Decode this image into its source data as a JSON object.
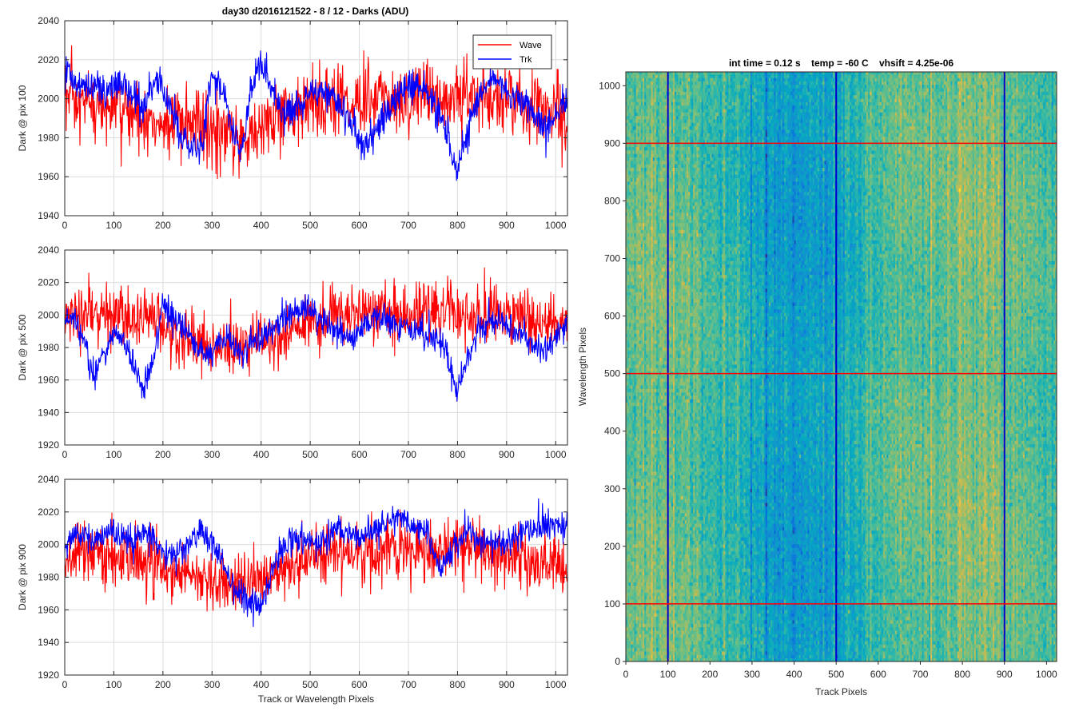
{
  "figure": {
    "title": "day30 d2016121522 - 8 / 12 - Darks (ADU)"
  },
  "chart_data": [
    {
      "type": "line",
      "ylabel": "Dark @ pix 100",
      "xlabel": "",
      "xlim": [
        0,
        1024
      ],
      "ylim": [
        1940,
        2040
      ],
      "xticks": [
        0,
        100,
        200,
        300,
        400,
        500,
        600,
        700,
        800,
        900,
        1000
      ],
      "yticks": [
        1940,
        1960,
        1980,
        2000,
        2020,
        2040
      ],
      "grid": true,
      "legend": "top-right",
      "series": [
        {
          "name": "Wave",
          "color": "#ff0000",
          "mean": 1993,
          "noise": 9.5,
          "anchors": [
            [
              0,
              2003
            ],
            [
              20,
              1996
            ],
            [
              60,
              1996
            ],
            [
              100,
              1994
            ],
            [
              150,
              1992
            ],
            [
              200,
              1986
            ],
            [
              250,
              1987
            ],
            [
              300,
              1982
            ],
            [
              350,
              1980
            ],
            [
              400,
              1984
            ],
            [
              450,
              1993
            ],
            [
              500,
              1998
            ],
            [
              550,
              2000
            ],
            [
              600,
              1998
            ],
            [
              650,
              1999
            ],
            [
              700,
              2002
            ],
            [
              750,
              2001
            ],
            [
              800,
              2000
            ],
            [
              850,
              2001
            ],
            [
              900,
              1998
            ],
            [
              950,
              1996
            ],
            [
              1000,
              1993
            ],
            [
              1023,
              1990
            ]
          ]
        },
        {
          "name": "Trk",
          "color": "#0000ff",
          "mean": 1998,
          "noise": 4.5,
          "anchors": [
            [
              0,
              2015
            ],
            [
              20,
              2010
            ],
            [
              40,
              2006
            ],
            [
              60,
              2008
            ],
            [
              80,
              2002
            ],
            [
              100,
              2006
            ],
            [
              120,
              2007
            ],
            [
              140,
              2000
            ],
            [
              160,
              1996
            ],
            [
              180,
              2012
            ],
            [
              200,
              2005
            ],
            [
              220,
              1993
            ],
            [
              240,
              1978
            ],
            [
              260,
              1972
            ],
            [
              280,
              1975
            ],
            [
              300,
              2015
            ],
            [
              320,
              2004
            ],
            [
              340,
              1986
            ],
            [
              360,
              1970
            ],
            [
              380,
              2006
            ],
            [
              400,
              2018
            ],
            [
              420,
              2006
            ],
            [
              440,
              1995
            ],
            [
              460,
              1993
            ],
            [
              480,
              1998
            ],
            [
              500,
              2002
            ],
            [
              520,
              2004
            ],
            [
              540,
              2002
            ],
            [
              560,
              1997
            ],
            [
              580,
              1990
            ],
            [
              600,
              1980
            ],
            [
              610,
              1972
            ],
            [
              620,
              1978
            ],
            [
              640,
              1985
            ],
            [
              660,
              1996
            ],
            [
              680,
              2003
            ],
            [
              700,
              2008
            ],
            [
              720,
              2005
            ],
            [
              740,
              2001
            ],
            [
              760,
              1992
            ],
            [
              780,
              1982
            ],
            [
              790,
              1970
            ],
            [
              800,
              1962
            ],
            [
              810,
              1975
            ],
            [
              830,
              1992
            ],
            [
              850,
              2005
            ],
            [
              870,
              2011
            ],
            [
              890,
              2006
            ],
            [
              910,
              2001
            ],
            [
              940,
              1998
            ],
            [
              960,
              1990
            ],
            [
              980,
              1984
            ],
            [
              1000,
              1992
            ],
            [
              1023,
              1998
            ]
          ]
        }
      ]
    },
    {
      "type": "line",
      "ylabel": "Dark @ pix 500",
      "xlabel": "",
      "xlim": [
        0,
        1024
      ],
      "ylim": [
        1920,
        2040
      ],
      "xticks": [
        0,
        100,
        200,
        300,
        400,
        500,
        600,
        700,
        800,
        900,
        1000
      ],
      "yticks": [
        1920,
        1940,
        1960,
        1980,
        2000,
        2020,
        2040
      ],
      "grid": true,
      "series": [
        {
          "name": "Wave",
          "color": "#ff0000",
          "mean": 1995,
          "noise": 9,
          "anchors": [
            [
              0,
              1998
            ],
            [
              50,
              2000
            ],
            [
              100,
              2002
            ],
            [
              150,
              1998
            ],
            [
              200,
              1994
            ],
            [
              250,
              1986
            ],
            [
              300,
              1980
            ],
            [
              350,
              1980
            ],
            [
              400,
              1984
            ],
            [
              450,
              1990
            ],
            [
              500,
              1995
            ],
            [
              550,
              1998
            ],
            [
              600,
              1999
            ],
            [
              650,
              2001
            ],
            [
              700,
              2002
            ],
            [
              750,
              2002
            ],
            [
              800,
              2000
            ],
            [
              850,
              2000
            ],
            [
              900,
              1999
            ],
            [
              950,
              1997
            ],
            [
              1000,
              1995
            ],
            [
              1023,
              1993
            ]
          ]
        },
        {
          "name": "Trk",
          "color": "#0000ff",
          "mean": 1990,
          "noise": 4.5,
          "anchors": [
            [
              0,
              2001
            ],
            [
              20,
              1996
            ],
            [
              40,
              1985
            ],
            [
              50,
              1970
            ],
            [
              60,
              1963
            ],
            [
              80,
              1978
            ],
            [
              100,
              1990
            ],
            [
              120,
              1985
            ],
            [
              140,
              1968
            ],
            [
              160,
              1953
            ],
            [
              180,
              1972
            ],
            [
              200,
              2008
            ],
            [
              220,
              1998
            ],
            [
              240,
              1992
            ],
            [
              260,
              1985
            ],
            [
              280,
              1975
            ],
            [
              300,
              1975
            ],
            [
              320,
              1986
            ],
            [
              340,
              1983
            ],
            [
              360,
              1978
            ],
            [
              380,
              1983
            ],
            [
              400,
              1985
            ],
            [
              420,
              1992
            ],
            [
              440,
              1995
            ],
            [
              460,
              2000
            ],
            [
              480,
              2005
            ],
            [
              500,
              2003
            ],
            [
              520,
              1996
            ],
            [
              540,
              1995
            ],
            [
              560,
              1988
            ],
            [
              580,
              1986
            ],
            [
              600,
              1990
            ],
            [
              620,
              1995
            ],
            [
              640,
              1998
            ],
            [
              660,
              1995
            ],
            [
              680,
              1993
            ],
            [
              700,
              1990
            ],
            [
              720,
              1992
            ],
            [
              740,
              1988
            ],
            [
              760,
              1985
            ],
            [
              780,
              1978
            ],
            [
              790,
              1965
            ],
            [
              800,
              1955
            ],
            [
              810,
              1965
            ],
            [
              830,
              1982
            ],
            [
              850,
              1993
            ],
            [
              870,
              1995
            ],
            [
              890,
              1997
            ],
            [
              910,
              1991
            ],
            [
              930,
              1987
            ],
            [
              950,
              1983
            ],
            [
              970,
              1978
            ],
            [
              990,
              1980
            ],
            [
              1010,
              1990
            ],
            [
              1023,
              1995
            ]
          ]
        }
      ]
    },
    {
      "type": "line",
      "ylabel": "Dark @ pix 900",
      "xlabel": "Track or Wavelength Pixels",
      "xlim": [
        0,
        1024
      ],
      "ylim": [
        1920,
        2040
      ],
      "xticks": [
        0,
        100,
        200,
        300,
        400,
        500,
        600,
        700,
        800,
        900,
        1000
      ],
      "yticks": [
        1920,
        1940,
        1960,
        1980,
        2000,
        2020,
        2040
      ],
      "grid": true,
      "series": [
        {
          "name": "Wave",
          "color": "#ff0000",
          "mean": 1990,
          "noise": 9,
          "anchors": [
            [
              0,
              1993
            ],
            [
              50,
              1994
            ],
            [
              100,
              1992
            ],
            [
              150,
              1988
            ],
            [
              200,
              1984
            ],
            [
              250,
              1982
            ],
            [
              300,
              1978
            ],
            [
              350,
              1975
            ],
            [
              400,
              1978
            ],
            [
              450,
              1986
            ],
            [
              500,
              1993
            ],
            [
              550,
              1996
            ],
            [
              600,
              1994
            ],
            [
              650,
              1995
            ],
            [
              700,
              1997
            ],
            [
              750,
              1996
            ],
            [
              800,
              1996
            ],
            [
              850,
              1995
            ],
            [
              900,
              1993
            ],
            [
              950,
              1991
            ],
            [
              1000,
              1988
            ],
            [
              1023,
              1985
            ]
          ]
        },
        {
          "name": "Trk",
          "color": "#0000ff",
          "mean": 1998,
          "noise": 4.5,
          "anchors": [
            [
              0,
              1998
            ],
            [
              20,
              2004
            ],
            [
              40,
              2007
            ],
            [
              60,
              2002
            ],
            [
              80,
              2006
            ],
            [
              100,
              2008
            ],
            [
              120,
              2004
            ],
            [
              140,
              2001
            ],
            [
              160,
              2009
            ],
            [
              180,
              2005
            ],
            [
              200,
              1995
            ],
            [
              220,
              1994
            ],
            [
              240,
              1998
            ],
            [
              260,
              2003
            ],
            [
              280,
              2008
            ],
            [
              300,
              2001
            ],
            [
              320,
              1990
            ],
            [
              340,
              1975
            ],
            [
              360,
              1970
            ],
            [
              380,
              1962
            ],
            [
              400,
              1965
            ],
            [
              420,
              1980
            ],
            [
              440,
              1998
            ],
            [
              460,
              2003
            ],
            [
              480,
              2005
            ],
            [
              500,
              2001
            ],
            [
              520,
              2003
            ],
            [
              540,
              2006
            ],
            [
              560,
              2010
            ],
            [
              580,
              2006
            ],
            [
              600,
              2005
            ],
            [
              620,
              2006
            ],
            [
              640,
              2010
            ],
            [
              660,
              2014
            ],
            [
              680,
              2018
            ],
            [
              700,
              2012
            ],
            [
              720,
              2011
            ],
            [
              740,
              2006
            ],
            [
              760,
              1988
            ],
            [
              770,
              1985
            ],
            [
              780,
              1993
            ],
            [
              800,
              2004
            ],
            [
              820,
              2007
            ],
            [
              840,
              2005
            ],
            [
              860,
              2002
            ],
            [
              880,
              2001
            ],
            [
              900,
              2003
            ],
            [
              920,
              2006
            ],
            [
              940,
              2008
            ],
            [
              960,
              2010
            ],
            [
              980,
              2012
            ],
            [
              1000,
              2012
            ],
            [
              1023,
              2013
            ]
          ]
        }
      ]
    },
    {
      "type": "heatmap",
      "title": "int time = 0.12 s    temp = -60 C    vhsift = 4.25e-06",
      "xlabel": "Track Pixels",
      "ylabel": "Wavelength Pixels",
      "xlim": [
        0,
        1024
      ],
      "ylim": [
        0,
        1024
      ],
      "xticks": [
        0,
        100,
        200,
        300,
        400,
        500,
        600,
        700,
        800,
        900,
        1000
      ],
      "yticks": [
        0,
        100,
        200,
        300,
        400,
        500,
        600,
        700,
        800,
        900,
        1000
      ],
      "colormap": "parula",
      "column_profile": [
        [
          0,
          0.55
        ],
        [
          60,
          0.62
        ],
        [
          100,
          0.6
        ],
        [
          200,
          0.52
        ],
        [
          300,
          0.4
        ],
        [
          400,
          0.32
        ],
        [
          500,
          0.34
        ],
        [
          520,
          0.42
        ],
        [
          600,
          0.52
        ],
        [
          700,
          0.58
        ],
        [
          800,
          0.62
        ],
        [
          900,
          0.6
        ],
        [
          950,
          0.55
        ],
        [
          1023,
          0.52
        ]
      ],
      "vertical_markers": {
        "x": [
          100,
          500,
          900
        ],
        "color": "#0000cc"
      },
      "horizontal_markers": {
        "y": [
          100,
          500,
          900
        ],
        "color": "#ff0000"
      }
    }
  ]
}
